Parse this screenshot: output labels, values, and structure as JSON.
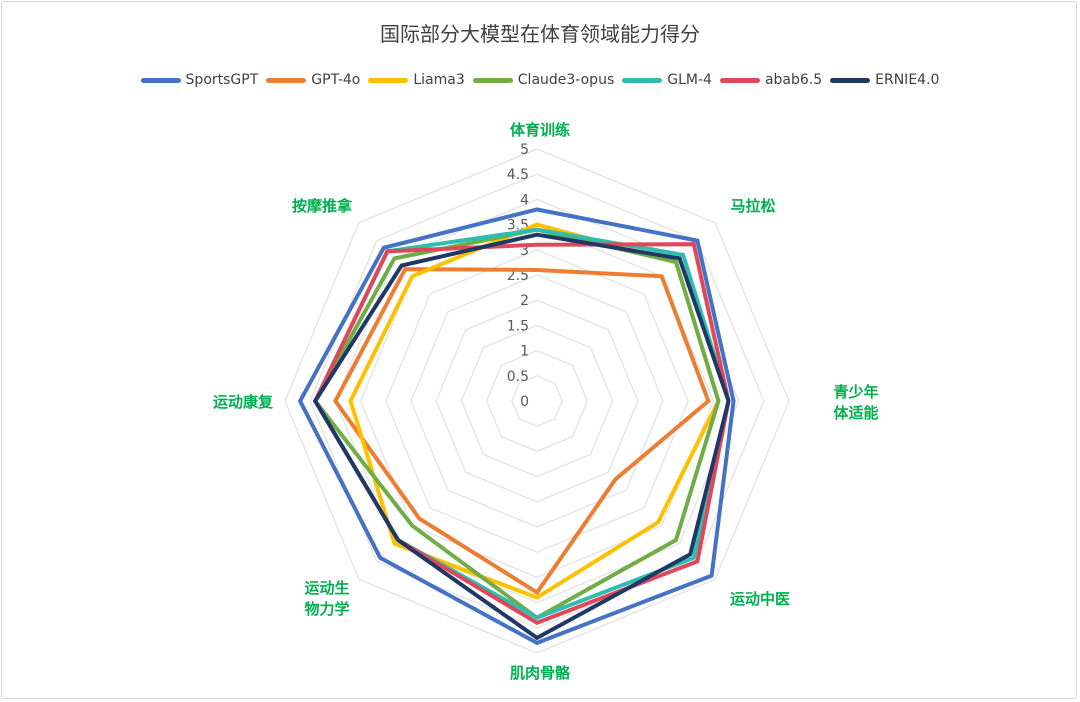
{
  "chart_data": {
    "type": "radar",
    "title": "国际部分大模型在体育领域能力得分",
    "categories": [
      "体育训练",
      "马拉松",
      "青少年体适能",
      "运动中医",
      "肌肉骨骼",
      "运动生物力学",
      "运动康复",
      "按摩推拿"
    ],
    "rlim": [
      0,
      5
    ],
    "ticks": [
      "0",
      "0.5",
      "1",
      "1.5",
      "2",
      "2.5",
      "3",
      "3.5",
      "4",
      "4.5",
      "5"
    ],
    "legend_position": "top",
    "grid": true,
    "series": [
      {
        "name": "SportsGPT",
        "color": "#4472C4",
        "values": [
          3.8,
          4.5,
          3.9,
          4.9,
          4.8,
          4.4,
          4.7,
          4.3
        ]
      },
      {
        "name": "GPT-4o",
        "color": "#ED7D31",
        "values": [
          2.6,
          3.5,
          3.4,
          2.2,
          3.8,
          3.3,
          4.0,
          3.7
        ]
      },
      {
        "name": "Liama3",
        "color": "#FFC000",
        "values": [
          3.5,
          3.9,
          3.6,
          3.4,
          3.9,
          4.0,
          3.7,
          3.5
        ]
      },
      {
        "name": "Claude3-opus",
        "color": "#70AD47",
        "values": [
          3.4,
          3.9,
          3.6,
          3.9,
          4.3,
          3.5,
          4.4,
          4.0
        ]
      },
      {
        "name": "GLM-4",
        "color": "#2EBDB0",
        "values": [
          3.4,
          4.1,
          3.8,
          4.4,
          4.3,
          3.9,
          4.4,
          4.2
        ]
      },
      {
        "name": "abab6.5",
        "color": "#E0485A",
        "values": [
          3.1,
          4.4,
          3.8,
          4.5,
          4.4,
          3.9,
          4.4,
          4.2
        ]
      },
      {
        "name": "ERNIE4.0",
        "color": "#203864",
        "values": [
          3.3,
          4.0,
          3.8,
          4.3,
          4.7,
          3.9,
          4.4,
          3.8
        ]
      }
    ]
  }
}
